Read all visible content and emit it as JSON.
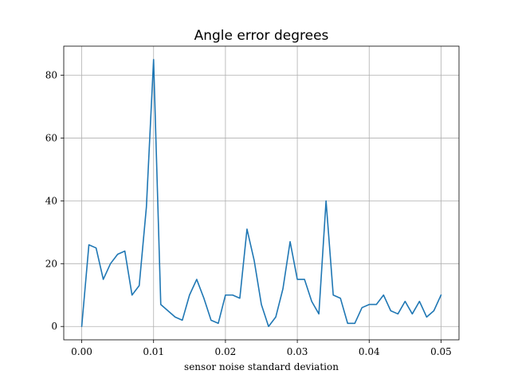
{
  "chart_data": {
    "type": "line",
    "title": "Angle error degrees",
    "xlabel": "sensor noise standard deviation",
    "ylabel": "",
    "xlim": [
      -0.0025,
      0.0525
    ],
    "ylim": [
      -4.25,
      89.25
    ],
    "grid": true,
    "x_ticks": [
      0.0,
      0.01,
      0.02,
      0.03,
      0.04,
      0.05
    ],
    "x_tick_labels": [
      "0.00",
      "0.01",
      "0.02",
      "0.03",
      "0.04",
      "0.05"
    ],
    "y_ticks": [
      0,
      20,
      40,
      60,
      80
    ],
    "y_tick_labels": [
      "0",
      "20",
      "40",
      "60",
      "80"
    ],
    "series": [
      {
        "color": "#1f77b4",
        "x": [
          0.0,
          0.001,
          0.002,
          0.003,
          0.004,
          0.005,
          0.006,
          0.007,
          0.008,
          0.009,
          0.01,
          0.011,
          0.012,
          0.013,
          0.014,
          0.015,
          0.016,
          0.017,
          0.018,
          0.019,
          0.02,
          0.021,
          0.022,
          0.023,
          0.024,
          0.025,
          0.026,
          0.027,
          0.028,
          0.029,
          0.03,
          0.031,
          0.032,
          0.033,
          0.034,
          0.035,
          0.036,
          0.037,
          0.038,
          0.039,
          0.04,
          0.041,
          0.042,
          0.043,
          0.044,
          0.045,
          0.046,
          0.047,
          0.048,
          0.049,
          0.05
        ],
        "y": [
          0,
          26,
          25,
          15,
          20,
          23,
          24,
          10,
          13,
          38,
          85,
          7,
          5,
          3,
          2,
          10,
          15,
          9,
          2,
          1,
          10,
          10,
          9,
          31,
          21,
          7,
          0,
          3,
          12,
          27,
          15,
          15,
          8,
          4,
          40,
          10,
          9,
          1,
          1,
          6,
          7,
          7,
          10,
          5,
          4,
          8,
          4,
          8,
          3,
          5,
          10
        ]
      }
    ]
  }
}
